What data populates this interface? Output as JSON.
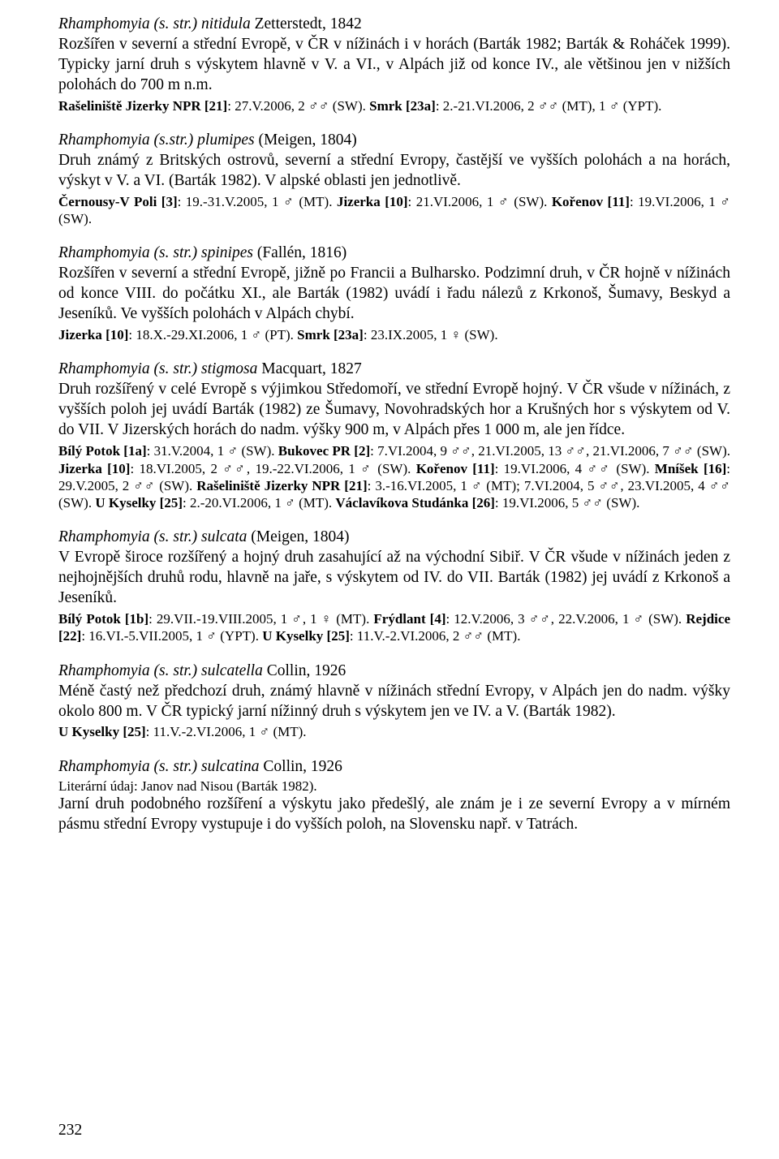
{
  "entries": [
    {
      "title_italic": "Rhamphomyia (s. str.) nitidula",
      "title_rest": " Zetterstedt, 1842",
      "body": "Rozšířen v severní a střední Evropě, v ČR v nížinách i v horách (Barták 1982; Barták & Roháček 1999). Typicky jarní druh s výskytem hlavně v V. a VI., v Alpách již od konce IV., ale většinou jen v nižších polohách do 700 m n.m.",
      "records": "<b>Rašeliniště Jizerky NPR [21]</b>: 27.V.2006, 2 ♂♂ (SW). <b>Smrk [23a]</b>: 2.-21.VI.2006, 2 ♂♂ (MT), 1 ♂ (YPT)."
    },
    {
      "title_italic": "Rhamphomyia (s.str.) plumipes",
      "title_rest": " (Meigen, 1804)",
      "body": "Druh známý z Britských ostrovů, severní a střední Evropy, častější ve vyšších polohách a na horách, výskyt v V. a VI. (Barták 1982). V alpské oblasti jen jednotlivě.",
      "records": "<b>Černousy-V Poli [3]</b>: 19.-31.V.2005, 1 ♂ (MT). <b>Jizerka [10]</b>: 21.VI.2006, 1 ♂ (SW). <b>Kořenov [11]</b>: 19.VI.2006, 1 ♂ (SW)."
    },
    {
      "title_italic": "Rhamphomyia (s. str.) spinipes",
      "title_rest": " (Fallén, 1816)",
      "body": "Rozšířen v severní a střední Evropě, jižně po Francii a Bulharsko. Podzimní druh, v ČR hojně v nížinách od konce VIII. do počátku XI., ale Barták (1982) uvádí i řadu nálezů z Krkonoš, Šumavy, Beskyd a Jeseníků. Ve vyšších polohách v Alpách chybí.",
      "records": "<b>Jizerka [10]</b>: 18.X.-29.XI.2006, 1 ♂ (PT). <b>Smrk [23a]</b>: 23.IX.2005, 1 ♀ (SW)."
    },
    {
      "title_italic": "Rhamphomyia (s. str.) stigmosa",
      "title_rest": " Macquart, 1827",
      "body": "Druh rozšířený v celé Evropě s výjimkou Středomoří, ve střední Evropě hojný. V ČR všude v nížinách, z vyšších poloh jej uvádí Barták (1982) ze Šumavy, Novohradských hor a Krušných hor s výskytem od V. do VII. V Jizerských horách do nadm. výšky 900 m, v Alpách přes 1 000 m, ale jen řídce.",
      "records": "<b>Bílý Potok [1a]</b>: 31.V.2004, 1 ♂ (SW). <b>Bukovec PR [2]</b>: 7.VI.2004, 9 ♂♂, 21.VI.2005, 13 ♂♂, 21.VI.2006, 7 ♂♂ (SW). <b>Jizerka [10]</b>: 18.VI.2005, 2 ♂♂, 19.-22.VI.2006, 1 ♂ (SW). <b>Kořenov [11]</b>: 19.VI.2006, 4 ♂♂ (SW). <b>Mníšek [16]</b>: 29.V.2005, 2 ♂♂ (SW). <b>Rašeliniště Jizerky NPR [21]</b>: 3.-16.VI.2005, 1 ♂ (MT); 7.VI.2004, 5 ♂♂, 23.VI.2005, 4 ♂♂ (SW). <b>U Kyselky [25]</b>: 2.-20.VI.2006, 1 ♂ (MT). <b>Václavíkova Studánka [26]</b>: 19.VI.2006, 5 ♂♂ (SW)."
    },
    {
      "title_italic": "Rhamphomyia (s. str.) sulcata",
      "title_rest": " (Meigen, 1804)",
      "body": "V Evropě široce rozšířený a hojný druh zasahující až na východní Sibiř. V ČR všude v nížinách jeden z nejhojnějších druhů rodu, hlavně na jaře, s výskytem od IV. do VII. Barták (1982) jej uvádí z Krkonoš a Jeseníků.",
      "records": "<b>Bílý Potok [1b]</b>: 29.VII.-19.VIII.2005, 1 ♂, 1 ♀ (MT). <b>Frýdlant [4]</b>: 12.V.2006, 3 ♂♂, 22.V.2006, 1 ♂ (SW). <b>Rejdice [22]</b>: 16.VI.-5.VII.2005, 1 ♂ (YPT). <b>U Kyselky [25]</b>: 11.V.-2.VI.2006, 2 ♂♂ (MT)."
    },
    {
      "title_italic": "Rhamphomyia (s. str.) sulcatella",
      "title_rest": " Collin, 1926",
      "body": "Méně častý než předchozí druh, známý hlavně v nížinách střední Evropy, v Alpách jen do nadm. výšky okolo 800 m. V ČR typický jarní nížinný druh s výskytem jen ve IV. a V. (Barták 1982).",
      "records": "<b>U Kyselky [25]</b>: 11.V.-2.VI.2006, 1 ♂ (MT)."
    },
    {
      "title_italic": "Rhamphomyia (s. str.) sulcatina",
      "title_rest": " Collin, 1926",
      "lit": "Literární údaj: Janov nad Nisou (Barták 1982).",
      "body": "Jarní druh podobného rozšíření a výskytu jako předešlý, ale znám je i ze severní Evropy a v mírném pásmu střední Evropy vystupuje i do vyšších poloh, na Slovensku např. v Tatrách."
    }
  ],
  "page_number": "232"
}
